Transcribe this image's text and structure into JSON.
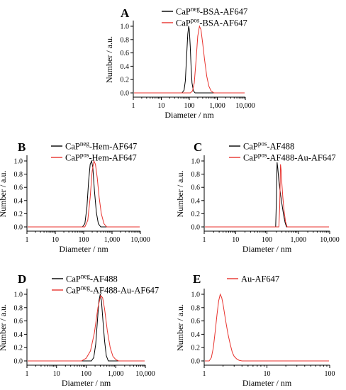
{
  "figure": {
    "panels": [
      {
        "letter": "A",
        "xlabel": "Diameter / nm",
        "ylabel": "Number / a.u.",
        "x_ticks": [
          "1",
          "10",
          "100",
          "1,000",
          "10,000"
        ],
        "y_ticks": [
          "0.0",
          "0.2",
          "0.4",
          "0.6",
          "0.8",
          "1.0"
        ],
        "legend": [
          {
            "pre": "CaP",
            "sup": "neg",
            "post": "-BSA-AF647",
            "color": "#000000"
          },
          {
            "pre": "CaP",
            "sup": "pos",
            "post": "-BSA-AF647",
            "color": "#e8322d"
          }
        ]
      },
      {
        "letter": "B",
        "xlabel": "Diameter / nm",
        "ylabel": "Number / a.u.",
        "x_ticks": [
          "1",
          "10",
          "100",
          "1,000",
          "10,000"
        ],
        "y_ticks": [
          "0.0",
          "0.2",
          "0.4",
          "0.6",
          "0.8",
          "1.0"
        ],
        "legend": [
          {
            "pre": "CaP",
            "sup": "neg",
            "post": "-Hem-AF647",
            "color": "#000000"
          },
          {
            "pre": "CaP",
            "sup": "pos",
            "post": "-Hem-AF647",
            "color": "#e8322d"
          }
        ]
      },
      {
        "letter": "C",
        "xlabel": "Diameter / nm",
        "ylabel": "Number / a.u.",
        "x_ticks": [
          "1",
          "10",
          "100",
          "1,000",
          "10,000"
        ],
        "y_ticks": [
          "0.0",
          "0.2",
          "0.4",
          "0.6",
          "0.8",
          "1.0"
        ],
        "legend": [
          {
            "pre": "CaP",
            "sup": "pos",
            "post": "-AF488",
            "color": "#000000"
          },
          {
            "pre": "CaP",
            "sup": "pos",
            "post": "-AF488-Au-AF647",
            "color": "#e8322d"
          }
        ]
      },
      {
        "letter": "D",
        "xlabel": "Diameter / nm",
        "ylabel": "Number / a.u.",
        "x_ticks": [
          "1",
          "10",
          "100",
          "1,000",
          "10,000"
        ],
        "y_ticks": [
          "0.0",
          "0.2",
          "0.4",
          "0.6",
          "0.8",
          "1.0"
        ],
        "legend": [
          {
            "pre": "CaP",
            "sup": "neg",
            "post": "-AF488",
            "color": "#000000"
          },
          {
            "pre": "CaP",
            "sup": "neg",
            "post": "-AF488-Au-AF647",
            "color": "#e8322d"
          }
        ]
      },
      {
        "letter": "E",
        "xlabel": "Diameter / nm",
        "ylabel": "Number / a.u.",
        "x_ticks": [
          "1",
          "10",
          "100"
        ],
        "y_ticks": [
          "0.0",
          "0.2",
          "0.4",
          "0.6",
          "0.8",
          "1.0"
        ],
        "legend": [
          {
            "pre": "Au-AF647",
            "sup": "",
            "post": "",
            "color": "#e8322d"
          }
        ]
      }
    ]
  },
  "chart_data": [
    {
      "type": "line",
      "panel": "A",
      "x_scale": "log",
      "xlim": [
        1,
        10000
      ],
      "ylim": [
        0,
        1.05
      ],
      "legend_position": "top-right",
      "series": [
        {
          "name": "CaPneg-BSA-AF647",
          "color": "#000000",
          "x": [
            55,
            65,
            72,
            80,
            88,
            95,
            100,
            108,
            115,
            125,
            140,
            160
          ],
          "y": [
            0.0,
            0.04,
            0.18,
            0.55,
            0.88,
            1.0,
            0.95,
            0.7,
            0.42,
            0.15,
            0.03,
            0.0
          ]
        },
        {
          "name": "CaPpos-BSA-AF647",
          "color": "#e8322d",
          "x": [
            110,
            130,
            150,
            175,
            200,
            230,
            260,
            300,
            350,
            420,
            500,
            600,
            750
          ],
          "y": [
            0.0,
            0.03,
            0.15,
            0.5,
            0.85,
            1.0,
            0.95,
            0.75,
            0.5,
            0.25,
            0.1,
            0.03,
            0.0
          ]
        }
      ]
    },
    {
      "type": "line",
      "panel": "B",
      "x_scale": "log",
      "xlim": [
        1,
        10000
      ],
      "ylim": [
        0,
        1.05
      ],
      "legend_position": "top-right",
      "series": [
        {
          "name": "CaPneg-Hem-AF647",
          "color": "#000000",
          "x": [
            90,
            110,
            130,
            150,
            170,
            190,
            210,
            240,
            280,
            330,
            400
          ],
          "y": [
            0.0,
            0.05,
            0.3,
            0.7,
            0.95,
            1.0,
            0.9,
            0.55,
            0.22,
            0.05,
            0.0
          ]
        },
        {
          "name": "CaPpos-Hem-AF647",
          "color": "#e8322d",
          "x": [
            110,
            140,
            170,
            200,
            230,
            260,
            300,
            350,
            420,
            520,
            650
          ],
          "y": [
            0.0,
            0.1,
            0.45,
            0.85,
            1.0,
            0.95,
            0.75,
            0.45,
            0.2,
            0.05,
            0.0
          ]
        }
      ]
    },
    {
      "type": "line",
      "panel": "C",
      "x_scale": "log",
      "xlim": [
        1,
        10000
      ],
      "ylim": [
        0,
        1.05
      ],
      "legend_position": "top-right",
      "series": [
        {
          "name": "CaPpos-AF488",
          "color": "#000000",
          "x": [
            190,
            200,
            210,
            220,
            240,
            270,
            300,
            340,
            380,
            420
          ],
          "y": [
            0.0,
            0.4,
            0.98,
            0.9,
            0.7,
            0.5,
            0.35,
            0.18,
            0.06,
            0.0
          ]
        },
        {
          "name": "CaPpos-AF488-Au-AF647",
          "color": "#e8322d",
          "x": [
            240,
            255,
            270,
            285,
            300,
            320,
            350,
            390,
            440
          ],
          "y": [
            0.0,
            0.3,
            0.95,
            0.85,
            0.65,
            0.45,
            0.25,
            0.08,
            0.0
          ]
        }
      ]
    },
    {
      "type": "line",
      "panel": "D",
      "x_scale": "log",
      "xlim": [
        1,
        10000
      ],
      "ylim": [
        0,
        1.05
      ],
      "legend_position": "top-right",
      "series": [
        {
          "name": "CaPneg-AF488",
          "color": "#000000",
          "x": [
            150,
            180,
            210,
            240,
            270,
            300,
            330,
            370,
            420,
            480,
            560
          ],
          "y": [
            0.0,
            0.05,
            0.25,
            0.6,
            0.9,
            1.0,
            0.9,
            0.6,
            0.3,
            0.08,
            0.0
          ]
        },
        {
          "name": "CaPneg-AF488-Au-AF647",
          "color": "#e8322d",
          "x": [
            70,
            100,
            140,
            190,
            250,
            310,
            360,
            420,
            520,
            650,
            800,
            1000,
            1250
          ],
          "y": [
            0.0,
            0.04,
            0.15,
            0.42,
            0.8,
            0.98,
            0.95,
            0.78,
            0.45,
            0.2,
            0.07,
            0.02,
            0.0
          ]
        }
      ]
    },
    {
      "type": "line",
      "panel": "E",
      "x_scale": "log",
      "xlim": [
        1,
        100
      ],
      "ylim": [
        0,
        1.05
      ],
      "legend_position": "top-right",
      "series": [
        {
          "name": "Au-AF647",
          "color": "#e8322d",
          "x": [
            1.2,
            1.3,
            1.4,
            1.5,
            1.6,
            1.7,
            1.8,
            1.9,
            2.0,
            2.2,
            2.4,
            2.6,
            2.8,
            3.0,
            3.3,
            3.6,
            4.0
          ],
          "y": [
            0.0,
            0.05,
            0.2,
            0.45,
            0.7,
            0.9,
            1.0,
            0.95,
            0.85,
            0.6,
            0.4,
            0.25,
            0.13,
            0.07,
            0.03,
            0.01,
            0.0
          ]
        }
      ]
    }
  ]
}
